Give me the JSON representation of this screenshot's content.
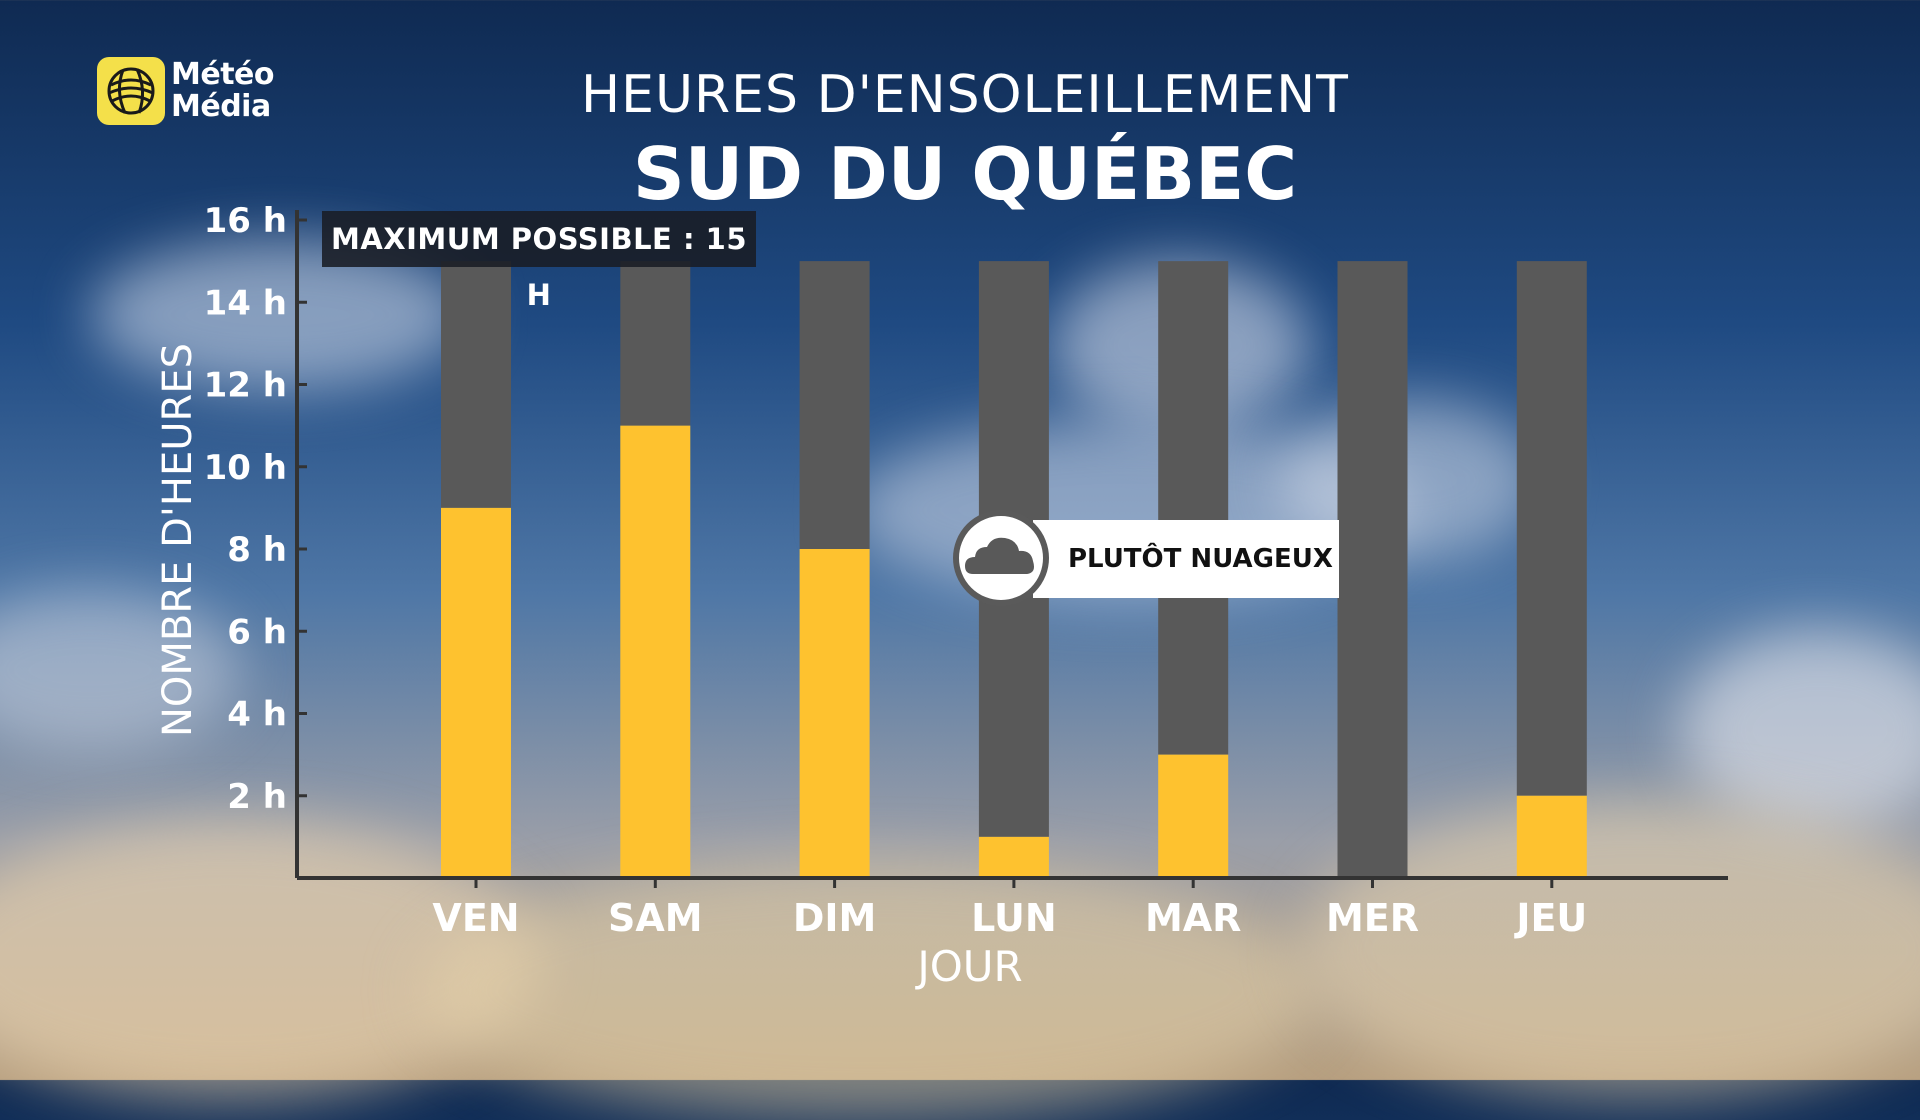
{
  "brand": {
    "logo_text": "Météo Média",
    "logo_line1": "Météo",
    "logo_line2": "Média"
  },
  "colors": {
    "sun": "#fec22f",
    "remaining": "#595959",
    "axis": "#333333"
  },
  "badge": {
    "text": "MAXIMUM POSSIBLE : 15 H"
  },
  "callout": {
    "icon": "cloud-icon",
    "label": "PLUTÔT NUAGEUX"
  },
  "chart_data": {
    "type": "bar",
    "title": "HEURES D'ENSOLEILLEMENT",
    "subtitle": "SUD DU QUÉBEC",
    "xlabel": "JOUR",
    "ylabel": "NOMBRE D'HEURES",
    "categories": [
      "VEN",
      "SAM",
      "DIM",
      "LUN",
      "MAR",
      "MER",
      "JEU"
    ],
    "series": [
      {
        "values": [
          9,
          11,
          8,
          1,
          3,
          0,
          2
        ]
      }
    ],
    "max_possible": 15,
    "ylim": [
      0,
      16
    ],
    "yticks": [
      2,
      4,
      6,
      8,
      10,
      12,
      14,
      16
    ],
    "ytick_labels": [
      "2 h",
      "4 h",
      "6 h",
      "8 h",
      "10 h",
      "12 h",
      "14 h",
      "16 h"
    ],
    "grid": false,
    "stacked": true
  }
}
